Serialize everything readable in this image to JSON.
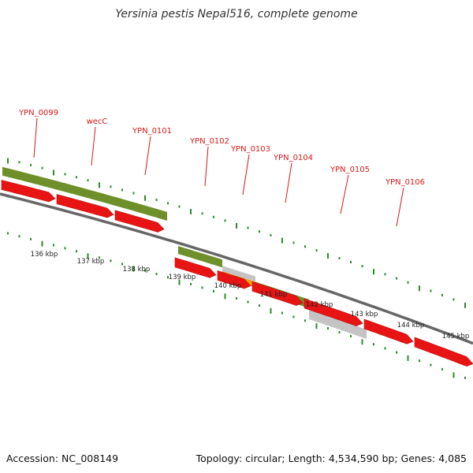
{
  "title": "Yersinia pestis Nepal516, complete genome",
  "footer": {
    "accession": "Accession: NC_008149",
    "summary": "Topology: circular; Length: 4,534,590 bp; Genes: 4,085"
  },
  "colors": {
    "cds_arrow": "#e81414",
    "gene_bar": "#6f8f2a",
    "gray_bar": "#c4c4c4",
    "orange_bar": "#f59a0a",
    "backbone": "#666666",
    "tick": "#2f8a2f",
    "label": "#d81818"
  },
  "gene_labels": [
    "YPN_0099",
    "wecC",
    "YPN_0101",
    "YPN_0102",
    "YPN_0103",
    "YPN_0104",
    "YPN_0105",
    "YPN_0106"
  ],
  "scale_labels": [
    "136 kbp",
    "137 kbp",
    "138 kbp",
    "139 kbp",
    "140 kbp",
    "141 kbp",
    "142 kbp",
    "143 kbp",
    "144 kbp",
    "145 kbp"
  ]
}
